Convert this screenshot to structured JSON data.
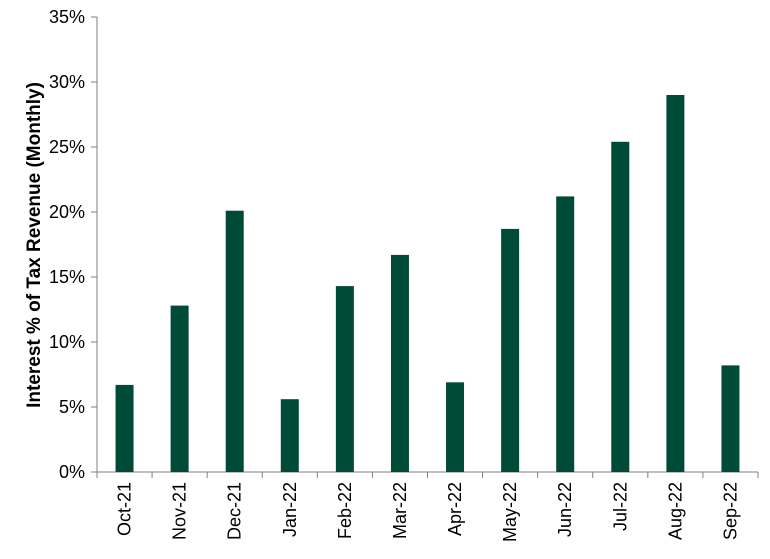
{
  "chart_data": {
    "type": "bar",
    "title": "",
    "xlabel": "",
    "ylabel": "Interest % of Tax Revenue (Monthly)",
    "categories": [
      "Oct-21",
      "Nov-21",
      "Dec-21",
      "Jan-22",
      "Feb-22",
      "Mar-22",
      "Apr-22",
      "May-22",
      "Jun-22",
      "Jul-22",
      "Aug-22",
      "Sep-22"
    ],
    "series": [
      {
        "values": [
          6.7,
          12.8,
          20.1,
          5.6,
          14.3,
          16.7,
          6.9,
          18.7,
          21.2,
          25.4,
          29.0,
          8.2
        ]
      }
    ],
    "ylim": [
      0,
      35
    ],
    "yticks": [
      0,
      5,
      10,
      15,
      20,
      25,
      30,
      35
    ],
    "ytick_labels": [
      "0%",
      "5%",
      "10%",
      "15%",
      "20%",
      "25%",
      "30%",
      "35%"
    ],
    "grid": false,
    "legend": "none",
    "bar_color": "#004a38"
  }
}
